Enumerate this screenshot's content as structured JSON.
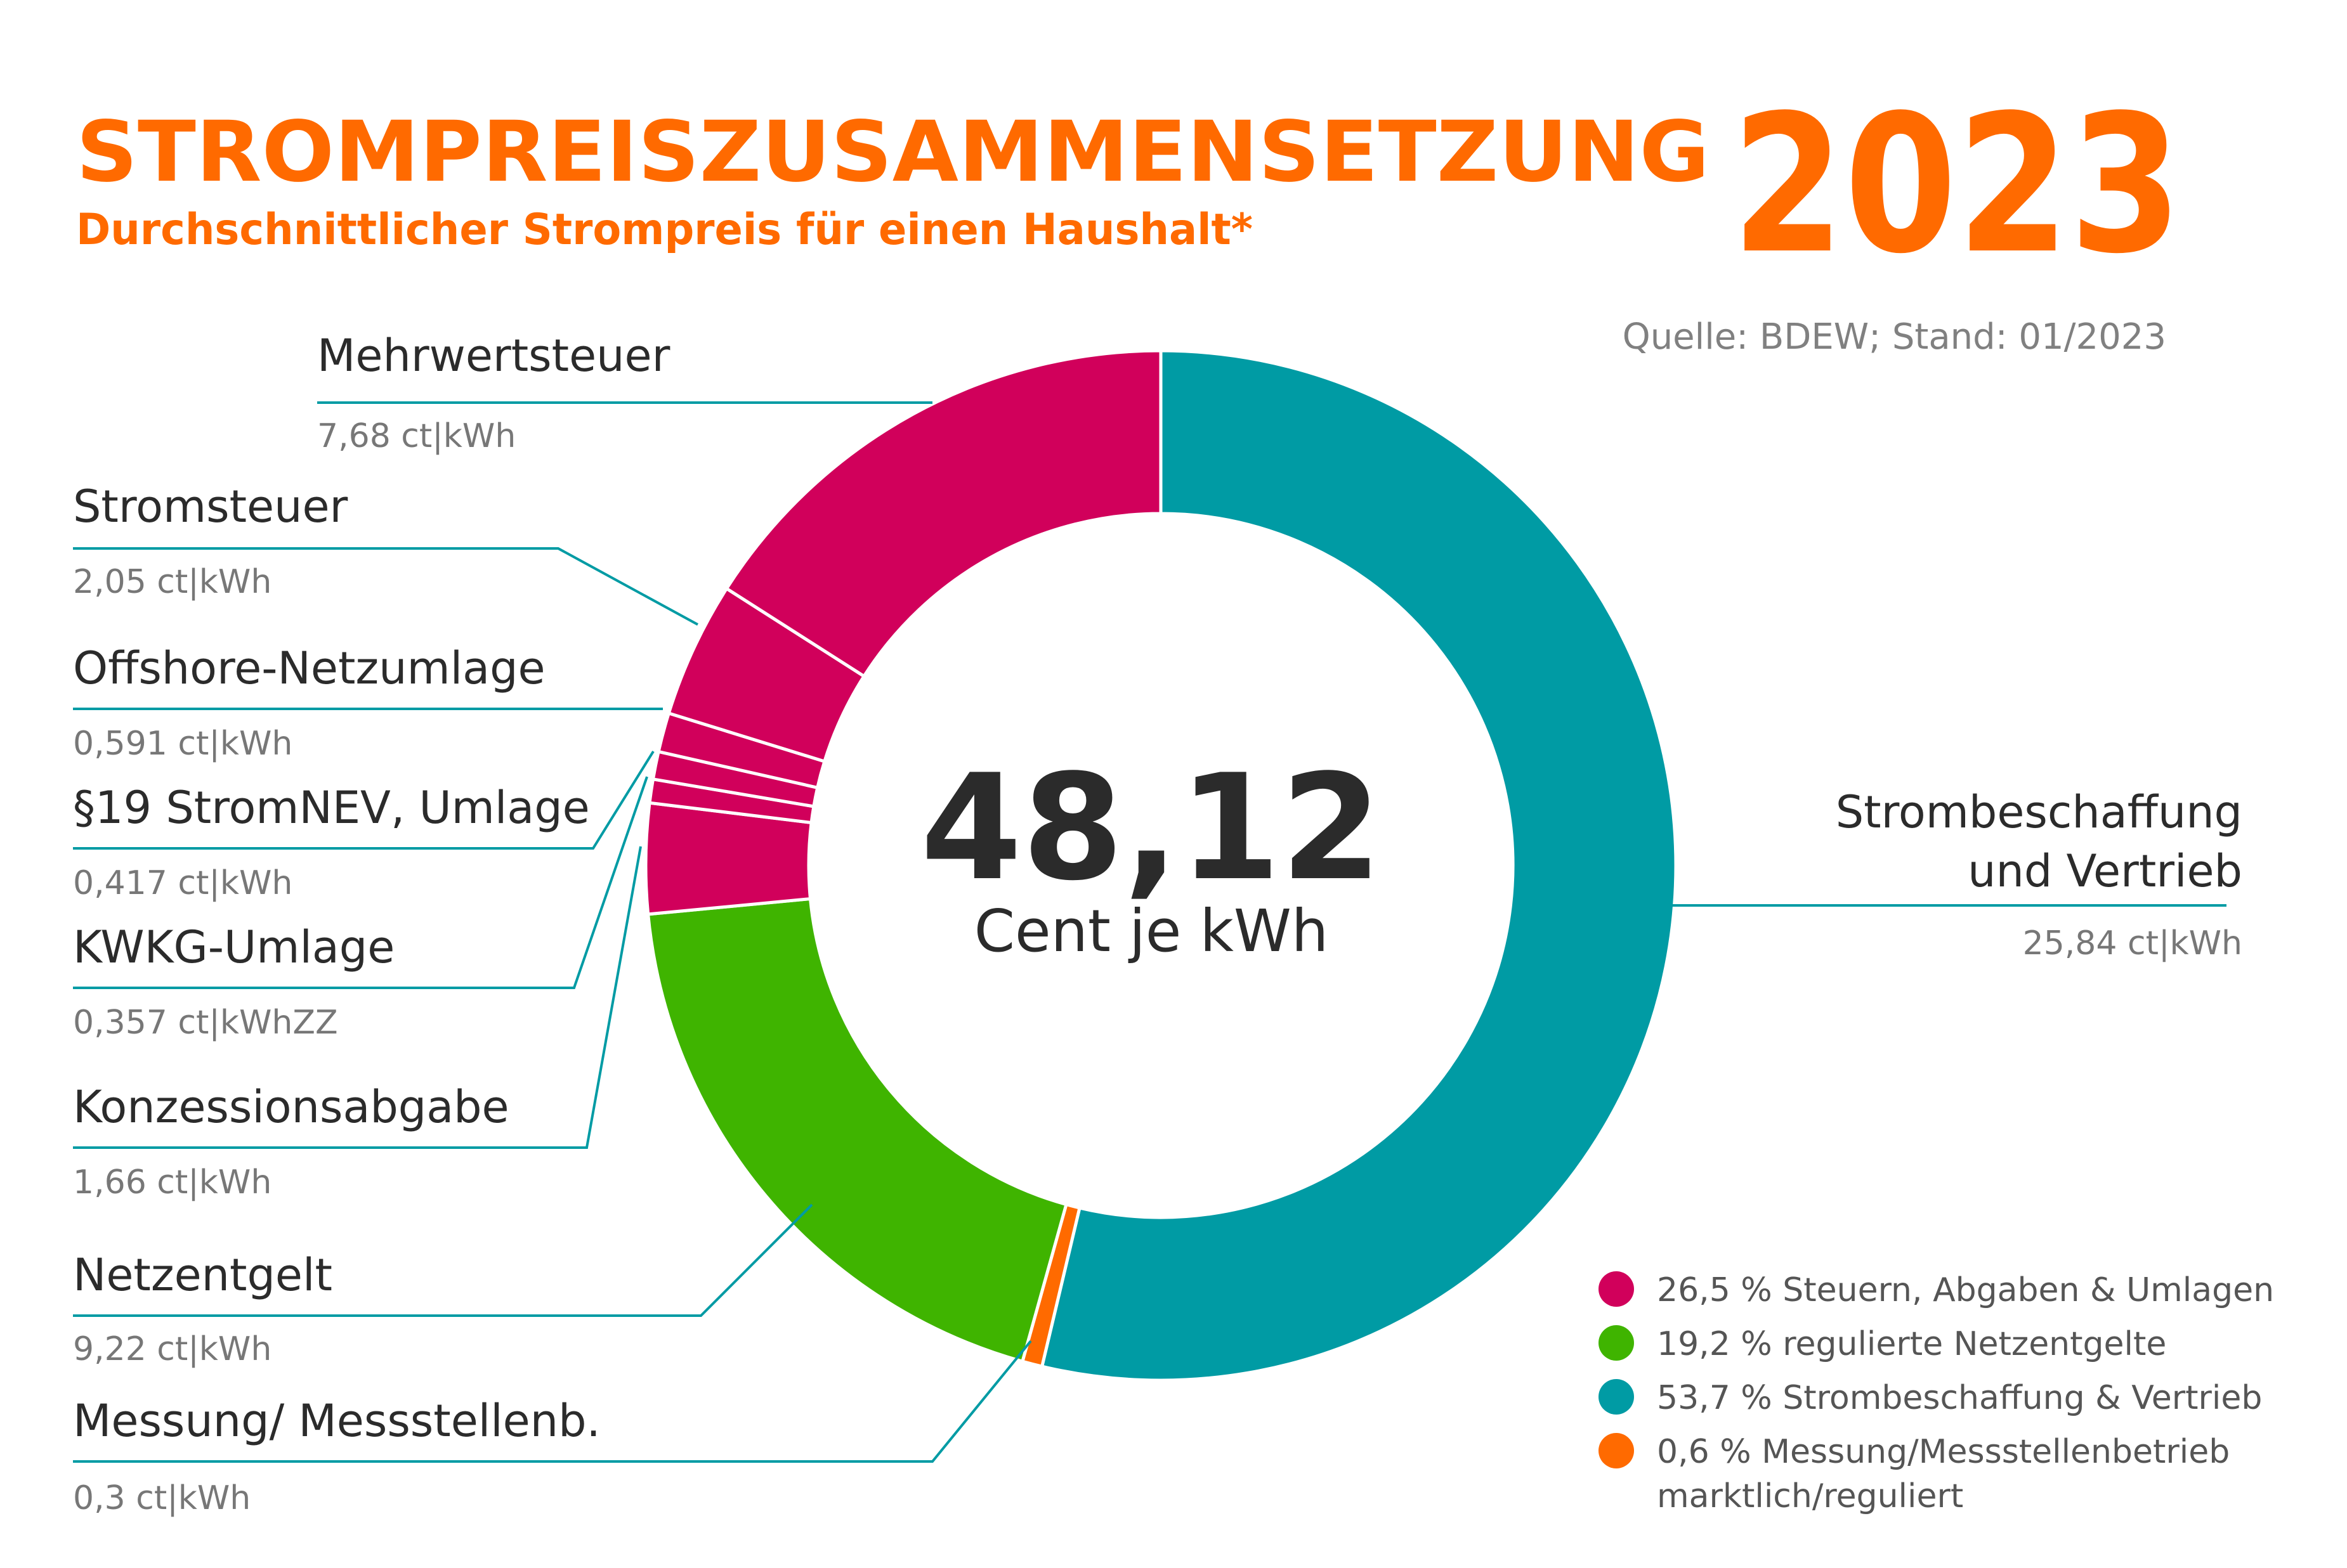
{
  "header": {
    "title": "STROMPREISZUSAMMENSETZUNG",
    "year": "2023",
    "subtitle": "Durchschnittlicher Strompreis für einen Haushalt*",
    "source": "Quelle: BDEW; Stand: 01/2023"
  },
  "center": {
    "total": "48,12",
    "unit": "Cent je kWh"
  },
  "colors": {
    "accent": "#ff6a00",
    "taxes": "#d1005b",
    "grid_fees": "#3fb400",
    "procurement": "#009ba4",
    "metering": "#ff6a00",
    "leader": "#009ba4"
  },
  "chart_data": {
    "type": "pie",
    "total": 48.12,
    "unit": "ct|kWh",
    "slices": [
      {
        "name": "Strombeschaffung und Vertrieb",
        "value": 25.84,
        "value_label": "25,84 ct|kWh",
        "group": "procurement"
      },
      {
        "name": "Messung/ Messstellenb.",
        "value": 0.3,
        "value_label": "0,3 ct|kWh",
        "group": "metering"
      },
      {
        "name": "Netzentgelt",
        "value": 9.22,
        "value_label": "9,22 ct|kWh",
        "group": "grid_fees"
      },
      {
        "name": "Konzessionsabgabe",
        "value": 1.66,
        "value_label": "1,66 ct|kWh",
        "group": "taxes"
      },
      {
        "name": "KWKG-Umlage",
        "value": 0.357,
        "value_label": "0,357 ct|kWhZZ",
        "group": "taxes"
      },
      {
        "name": "§19 StromNEV, Umlage",
        "value": 0.417,
        "value_label": "0,417 ct|kWh",
        "group": "taxes"
      },
      {
        "name": "Offshore-Netzumlage",
        "value": 0.591,
        "value_label": "0,591 ct|kWh",
        "group": "taxes"
      },
      {
        "name": "Stromsteuer",
        "value": 2.05,
        "value_label": "2,05 ct|kWh",
        "group": "taxes"
      },
      {
        "name": "Mehrwertsteuer",
        "value": 7.68,
        "value_label": "7,68 ct|kWh",
        "group": "taxes"
      }
    ],
    "legend": [
      {
        "group": "taxes",
        "text": "26,5 % Steuern, Abgaben & Umlagen",
        "percent": 26.5
      },
      {
        "group": "grid_fees",
        "text": "19,2 % regulierte Netzentgelte",
        "percent": 19.2
      },
      {
        "group": "procurement",
        "text": "53,7 % Strombeschaffung & Vertrieb",
        "percent": 53.7
      },
      {
        "group": "metering",
        "text": "0,6 % Messung/Messstellenbetrieb",
        "text2": "marktlich/reguliert",
        "percent": 0.6
      }
    ]
  }
}
